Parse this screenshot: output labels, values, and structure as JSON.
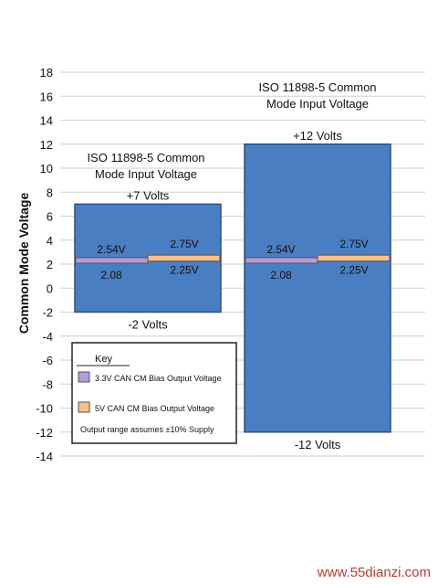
{
  "chart_data": {
    "type": "bar",
    "ylabel": "Common Mode Voltage",
    "ylim": [
      -14,
      18
    ],
    "yticks": [
      "18",
      "16",
      "14",
      "12",
      "10",
      "8",
      "6",
      "4",
      "2",
      "0",
      "-2",
      "-4",
      "-6",
      "-8",
      "-10",
      "-12",
      "-14"
    ],
    "grid": true,
    "ranges": [
      {
        "title_line1": "ISO 11898-5 Common",
        "title_line2": "Mode Input Voltage",
        "top": 7,
        "bottom": -2,
        "top_label": "+7 Volts",
        "bottom_label": "-2 Volts",
        "bias_3v3": {
          "high": 2.54,
          "low": 2.08,
          "high_label": "2.54V",
          "low_label": "2.08"
        },
        "bias_5v": {
          "high": 2.75,
          "low": 2.25,
          "high_label": "2.75V",
          "low_label": "2.25V"
        }
      },
      {
        "title_line1": "ISO 11898-5 Common",
        "title_line2": "Mode Input Voltage",
        "top": 12,
        "bottom": -12,
        "top_label": "+12 Volts",
        "bottom_label": "-12 Volts",
        "bias_3v3": {
          "high": 2.54,
          "low": 2.08,
          "high_label": "2.54V",
          "low_label": "2.08"
        },
        "bias_5v": {
          "high": 2.75,
          "low": 2.25,
          "high_label": "2.75V",
          "low_label": "2.25V"
        }
      }
    ],
    "key": {
      "title": "Key",
      "items": [
        "3.3V CAN CM Bias Output Voltage",
        "5V CAN CM Bias Output Voltage"
      ],
      "note": "Output range assumes ±10% Supply"
    }
  },
  "colors": {
    "range_fill": "#4a7ec2",
    "range_stroke": "#2d4f80",
    "bias_3v3": "#b39ddb",
    "bias_5v": "#f8c08a",
    "grid": "#cfcfcf"
  },
  "watermark": "www.55dianzi.com"
}
